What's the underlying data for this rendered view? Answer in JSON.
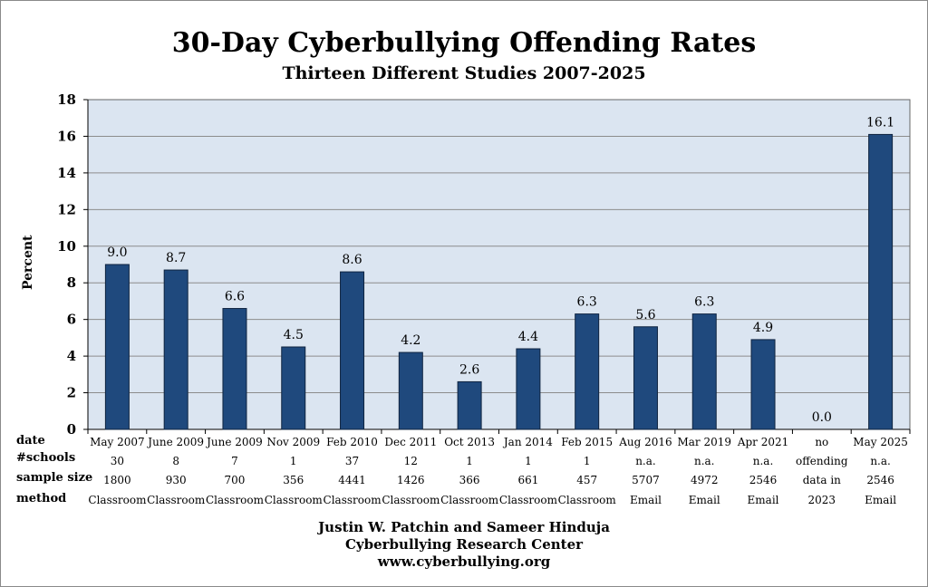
{
  "chart_data": {
    "type": "bar",
    "title": "30-Day Cyberbullying Offending Rates",
    "subtitle": "Thirteen Different Studies 2007-2025",
    "ylabel": "Percent",
    "xlabel": "",
    "ylim": [
      0,
      18
    ],
    "yticks": [
      0,
      2,
      4,
      6,
      8,
      10,
      12,
      14,
      16,
      18
    ],
    "grid": true,
    "bar_color": "#1f497d",
    "plot_bg": "#dbe5f1",
    "categories": [
      "May 2007",
      "June 2009",
      "June 2009",
      "Nov 2009",
      "Feb 2010",
      "Dec 2011",
      "Oct 2013",
      "Jan 2014",
      "Feb 2015",
      "Aug 2016",
      "Mar 2019",
      "Apr 2021",
      "no",
      "May 2025"
    ],
    "values": [
      9.0,
      8.7,
      6.6,
      4.5,
      8.6,
      4.2,
      2.6,
      4.4,
      6.3,
      5.6,
      6.3,
      4.9,
      0.0,
      16.1
    ],
    "value_labels": [
      "9.0",
      "8.7",
      "6.6",
      "4.5",
      "8.6",
      "4.2",
      "2.6",
      "4.4",
      "6.3",
      "5.6",
      "6.3",
      "4.9",
      "0.0",
      "16.1"
    ]
  },
  "table": {
    "row_labels": [
      "date",
      "#schools",
      "sample size",
      "method"
    ],
    "schools": [
      "30",
      "8",
      "7",
      "1",
      "37",
      "12",
      "1",
      "1",
      "1",
      "n.a.",
      "n.a.",
      "n.a.",
      "offending",
      "n.a."
    ],
    "sample_size": [
      "1800",
      "930",
      "700",
      "356",
      "4441",
      "1426",
      "366",
      "661",
      "457",
      "5707",
      "4972",
      "2546",
      "data in",
      "2546"
    ],
    "method": [
      "Classroom",
      "Classroom",
      "Classroom",
      "Classroom",
      "Classroom",
      "Classroom",
      "Classroom",
      "Classroom",
      "Classroom",
      "Email",
      "Email",
      "Email",
      "2023",
      "Email"
    ]
  },
  "footer": {
    "authors": "Justin W. Patchin and Sameer Hinduja",
    "org": "Cyberbullying Research Center",
    "url": "www.cyberbullying.org"
  }
}
